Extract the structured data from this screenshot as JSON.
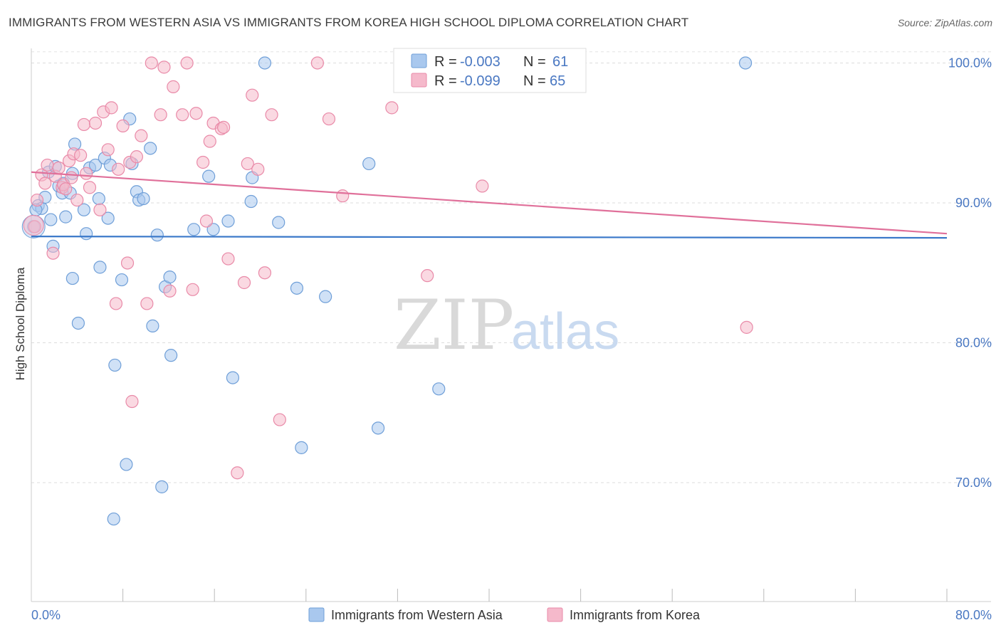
{
  "title": "IMMIGRANTS FROM WESTERN ASIA VS IMMIGRANTS FROM KOREA HIGH SCHOOL DIPLOMA CORRELATION CHART",
  "source": "Source: ZipAtlas.com",
  "watermark": {
    "zip": "ZIP",
    "atlas": "atlas"
  },
  "colors": {
    "blue_fill": "#a9c8ee",
    "blue_stroke": "#6f9fd8",
    "blue_line": "#3a78c9",
    "pink_fill": "#f5b9cb",
    "pink_stroke": "#e98aa8",
    "pink_line": "#e0709a",
    "axis_text": "#4a78c2"
  },
  "legend_box": {
    "rows": [
      {
        "r_label": "R =",
        "r_value": "-0.003",
        "n_label": "N =",
        "n_value": "61"
      },
      {
        "r_label": "R =",
        "r_value": "-0.099",
        "n_label": "N =",
        "n_value": "65"
      }
    ]
  },
  "chart_data": {
    "type": "scatter",
    "title": "IMMIGRANTS FROM WESTERN ASIA VS IMMIGRANTS FROM KOREA HIGH SCHOOL DIPLOMA CORRELATION CHART",
    "xlabel": "",
    "ylabel": "High School Diploma",
    "xlim": [
      0,
      80
    ],
    "ylim": [
      61.5,
      101.5
    ],
    "x_tick_labels": [
      "0.0%",
      "80.0%"
    ],
    "y_ticks": [
      70,
      80,
      90,
      100
    ],
    "y_tick_labels": [
      "70.0%",
      "80.0%",
      "90.0%",
      "100.0%"
    ],
    "grid": true,
    "legend_position": "bottom-center",
    "series": [
      {
        "name": "Immigrants from Western Asia",
        "color": "#a9c8ee",
        "trend": {
          "x": [
            0,
            80
          ],
          "y": [
            87.6,
            87.5
          ]
        },
        "points": [
          [
            0.2,
            88.3
          ],
          [
            0.6,
            89.8
          ],
          [
            0.9,
            89.6
          ],
          [
            1.2,
            90.4
          ],
          [
            1.5,
            92.2
          ],
          [
            1.7,
            88.8
          ],
          [
            1.9,
            86.9
          ],
          [
            2.1,
            92.6
          ],
          [
            2.4,
            91.2
          ],
          [
            2.7,
            90.7
          ],
          [
            2.8,
            91.4
          ],
          [
            3.0,
            89.0
          ],
          [
            3.4,
            90.7
          ],
          [
            3.6,
            84.6
          ],
          [
            3.6,
            92.1
          ],
          [
            3.8,
            94.2
          ],
          [
            4.1,
            81.4
          ],
          [
            4.6,
            89.5
          ],
          [
            4.8,
            87.8
          ],
          [
            5.1,
            92.5
          ],
          [
            5.6,
            92.7
          ],
          [
            5.9,
            90.3
          ],
          [
            6.0,
            85.4
          ],
          [
            6.4,
            93.2
          ],
          [
            6.7,
            88.9
          ],
          [
            6.9,
            92.7
          ],
          [
            7.2,
            67.4
          ],
          [
            7.3,
            78.4
          ],
          [
            7.9,
            84.5
          ],
          [
            8.3,
            71.3
          ],
          [
            8.6,
            96.0
          ],
          [
            8.8,
            92.8
          ],
          [
            9.2,
            90.8
          ],
          [
            9.4,
            90.2
          ],
          [
            9.8,
            90.3
          ],
          [
            10.4,
            93.9
          ],
          [
            10.6,
            81.2
          ],
          [
            11.0,
            87.7
          ],
          [
            11.4,
            69.7
          ],
          [
            11.7,
            84.0
          ],
          [
            12.1,
            84.7
          ],
          [
            12.2,
            79.1
          ],
          [
            14.2,
            88.1
          ],
          [
            15.5,
            91.9
          ],
          [
            15.9,
            88.1
          ],
          [
            17.2,
            88.7
          ],
          [
            17.6,
            77.5
          ],
          [
            19.2,
            90.1
          ],
          [
            19.3,
            91.8
          ],
          [
            20.4,
            100.0
          ],
          [
            21.6,
            88.6
          ],
          [
            23.2,
            83.9
          ],
          [
            23.6,
            72.5
          ],
          [
            25.7,
            83.3
          ],
          [
            29.5,
            92.8
          ],
          [
            30.3,
            73.9
          ],
          [
            35.6,
            76.7
          ],
          [
            39.3,
            100.0
          ],
          [
            41.2,
            100.0
          ],
          [
            62.4,
            100.0
          ],
          [
            0.4,
            89.5
          ]
        ]
      },
      {
        "name": "Immigrants from Korea",
        "color": "#f5b9cb",
        "trend": {
          "x": [
            0,
            80
          ],
          "y": [
            92.2,
            87.8
          ]
        },
        "points": [
          [
            0.3,
            88.3
          ],
          [
            0.5,
            90.2
          ],
          [
            0.9,
            92.0
          ],
          [
            1.2,
            91.4
          ],
          [
            1.4,
            92.7
          ],
          [
            1.9,
            86.4
          ],
          [
            2.1,
            91.9
          ],
          [
            2.4,
            92.5
          ],
          [
            2.7,
            91.1
          ],
          [
            2.8,
            91.3
          ],
          [
            3.0,
            91.0
          ],
          [
            3.3,
            93.0
          ],
          [
            3.5,
            91.8
          ],
          [
            3.7,
            93.5
          ],
          [
            4.0,
            90.2
          ],
          [
            4.3,
            93.4
          ],
          [
            4.6,
            95.6
          ],
          [
            4.8,
            92.1
          ],
          [
            5.1,
            91.1
          ],
          [
            5.6,
            95.7
          ],
          [
            6.0,
            89.5
          ],
          [
            6.3,
            96.5
          ],
          [
            6.7,
            93.8
          ],
          [
            7.0,
            96.8
          ],
          [
            7.4,
            82.8
          ],
          [
            7.6,
            92.4
          ],
          [
            8.0,
            95.5
          ],
          [
            8.4,
            85.7
          ],
          [
            8.6,
            92.9
          ],
          [
            8.8,
            75.8
          ],
          [
            9.2,
            93.3
          ],
          [
            9.6,
            94.8
          ],
          [
            10.1,
            82.8
          ],
          [
            10.5,
            100.0
          ],
          [
            11.3,
            96.3
          ],
          [
            11.6,
            99.7
          ],
          [
            12.1,
            83.7
          ],
          [
            12.4,
            98.3
          ],
          [
            13.2,
            96.3
          ],
          [
            13.6,
            100.0
          ],
          [
            14.1,
            83.8
          ],
          [
            14.4,
            96.4
          ],
          [
            15.0,
            92.9
          ],
          [
            15.3,
            88.7
          ],
          [
            15.6,
            94.4
          ],
          [
            15.9,
            95.7
          ],
          [
            16.6,
            95.3
          ],
          [
            16.8,
            95.4
          ],
          [
            17.2,
            86.0
          ],
          [
            18.0,
            70.7
          ],
          [
            18.6,
            84.3
          ],
          [
            18.9,
            92.8
          ],
          [
            19.3,
            97.7
          ],
          [
            19.8,
            92.4
          ],
          [
            20.4,
            85.0
          ],
          [
            21.0,
            96.3
          ],
          [
            21.7,
            74.5
          ],
          [
            25.0,
            100.0
          ],
          [
            26.0,
            96.0
          ],
          [
            27.2,
            90.5
          ],
          [
            31.5,
            96.8
          ],
          [
            34.6,
            84.8
          ],
          [
            39.4,
            91.2
          ],
          [
            41.1,
            100.0
          ],
          [
            62.5,
            81.1
          ]
        ]
      }
    ]
  }
}
